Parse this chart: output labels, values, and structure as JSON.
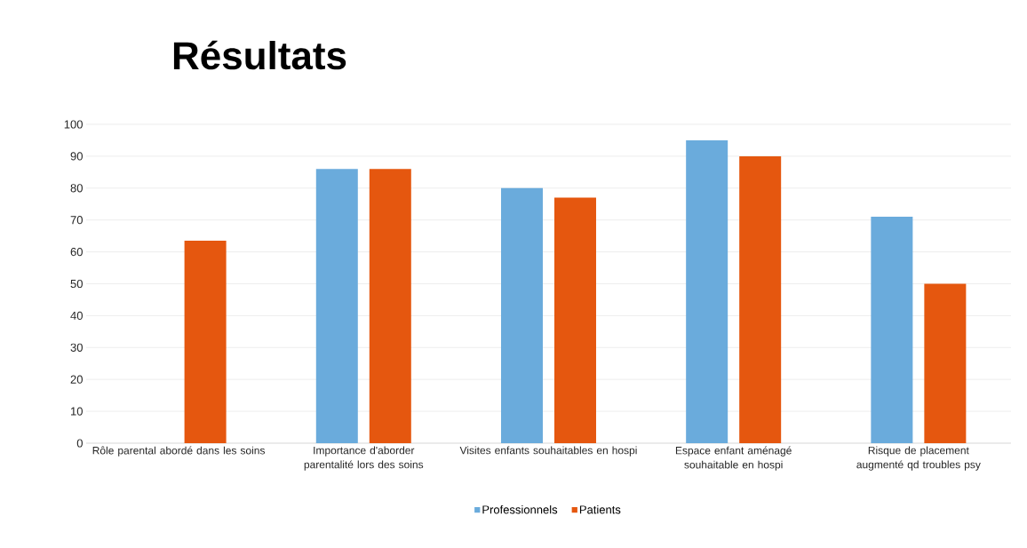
{
  "chart_data": {
    "type": "bar",
    "title": "Résultats",
    "categories": [
      "Rôle parental abordé dans les soins",
      "Importance d'aborder parentalité lors des soins",
      "Visites enfants souhaitables en hospi",
      "Espace enfant aménagé souhaitable en hospi",
      "Risque de placement augmenté qd troubles psy"
    ],
    "series": [
      {
        "name": "Professionnels",
        "color": "#6aabdc",
        "values": [
          null,
          86,
          80,
          95,
          71
        ]
      },
      {
        "name": "Patients",
        "color": "#e5570f",
        "values": [
          63.5,
          86,
          77,
          90,
          50
        ]
      }
    ],
    "ylim": [
      0,
      100
    ],
    "yticks": [
      0,
      10,
      20,
      30,
      40,
      50,
      60,
      70,
      80,
      90,
      100
    ],
    "grid": "y",
    "legend": "bottom"
  }
}
